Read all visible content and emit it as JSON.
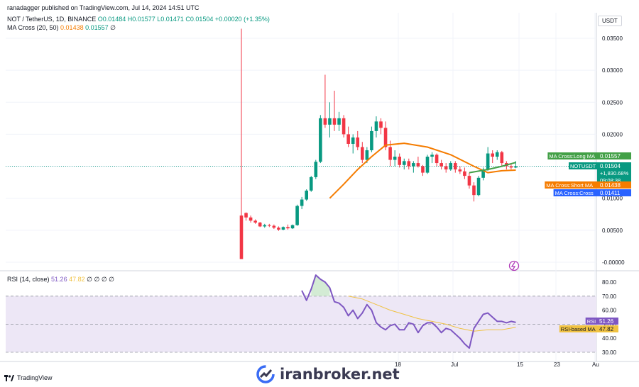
{
  "header": {
    "published": "ranadagger published on TradingView.com, Jul 14, 2024 14:51 UTC",
    "symbol": "NOT / TetherUS, 1D, BINANCE",
    "ohlc": "O0.01484 H0.01577 L0.01471 C0.01504 +0.00020 (+1.35%)",
    "ma_label": "MA Cross (20, 50)",
    "ma_short_val": "0.01438",
    "ma_long_val": "0.01557",
    "ma_tail": "∅",
    "rsi_label": "RSI (14, close)",
    "rsi_val": "51.26",
    "rsi_based_val": "47.82",
    "rsi_tail": "∅ ∅ ∅ ∅"
  },
  "currency": "USDT",
  "branding": {
    "tradingview": "TradingView",
    "watermark": "iranbroker.net"
  },
  "colors": {
    "up": "#089981",
    "down": "#f23645",
    "ma_short": "#f57c00",
    "ma_long": "#43a047",
    "rsi": "#7e57c2",
    "rsi_ma": "#f0c242",
    "rsi_band": "#ede7f6",
    "grid": "#f0f3fa"
  },
  "chart_data": [
    {
      "type": "candlestick",
      "title": "NOT / TetherUS, 1D, BINANCE",
      "ylim": [
        -0.0005,
        0.0375
      ],
      "y_ticks": [
        "0.03500",
        "0.03000",
        "0.02500",
        "0.02000",
        "0.01500",
        "0.01000",
        "0.00500",
        "-0.00000"
      ],
      "x_ticks": [
        "18",
        "Jul",
        "15",
        "23",
        "Au"
      ],
      "candles": [
        [
          0.0073,
          0.0365,
          0.0005,
          0.0005
        ],
        [
          0.0077,
          0.0078,
          0.0065,
          0.007
        ],
        [
          0.007,
          0.0073,
          0.0062,
          0.0065
        ],
        [
          0.0065,
          0.0067,
          0.006,
          0.0062
        ],
        [
          0.0062,
          0.0063,
          0.0055,
          0.0056
        ],
        [
          0.0056,
          0.006,
          0.0054,
          0.0058
        ],
        [
          0.0058,
          0.006,
          0.0055,
          0.0057
        ],
        [
          0.0057,
          0.0059,
          0.0052,
          0.0054
        ],
        [
          0.0054,
          0.0056,
          0.0049,
          0.0051
        ],
        [
          0.0051,
          0.0056,
          0.005,
          0.0055
        ],
        [
          0.0055,
          0.0059,
          0.0051,
          0.0053
        ],
        [
          0.0053,
          0.0059,
          0.0052,
          0.0058
        ],
        [
          0.0058,
          0.009,
          0.0057,
          0.0088
        ],
        [
          0.0088,
          0.0102,
          0.0083,
          0.0098
        ],
        [
          0.0098,
          0.0114,
          0.0096,
          0.0112
        ],
        [
          0.0112,
          0.0135,
          0.011,
          0.0133
        ],
        [
          0.0133,
          0.016,
          0.013,
          0.0157
        ],
        [
          0.0157,
          0.023,
          0.0155,
          0.0225
        ],
        [
          0.0225,
          0.0293,
          0.021,
          0.0215
        ],
        [
          0.0215,
          0.025,
          0.0195,
          0.0225
        ],
        [
          0.0225,
          0.0268,
          0.0205,
          0.0215
        ],
        [
          0.0215,
          0.0235,
          0.0205,
          0.0225
        ],
        [
          0.0225,
          0.023,
          0.0195,
          0.02
        ],
        [
          0.02,
          0.0212,
          0.018,
          0.0185
        ],
        [
          0.0185,
          0.02,
          0.017,
          0.0195
        ],
        [
          0.0195,
          0.0205,
          0.0175,
          0.018
        ],
        [
          0.018,
          0.0188,
          0.0155,
          0.016
        ],
        [
          0.016,
          0.018,
          0.0155,
          0.0175
        ],
        [
          0.0175,
          0.0212,
          0.0172,
          0.0205
        ],
        [
          0.0205,
          0.0228,
          0.0195,
          0.022
        ],
        [
          0.022,
          0.0225,
          0.02,
          0.021
        ],
        [
          0.021,
          0.022,
          0.0175,
          0.018
        ],
        [
          0.018,
          0.019,
          0.015,
          0.016
        ],
        [
          0.016,
          0.0175,
          0.015,
          0.0165
        ],
        [
          0.0165,
          0.017,
          0.0148,
          0.0152
        ],
        [
          0.0152,
          0.0162,
          0.0145,
          0.0158
        ],
        [
          0.0158,
          0.0162,
          0.0145,
          0.015
        ],
        [
          0.015,
          0.0158,
          0.014,
          0.0155
        ],
        [
          0.0155,
          0.0165,
          0.0148,
          0.015
        ],
        [
          0.015,
          0.0152,
          0.0135,
          0.014
        ],
        [
          0.014,
          0.0168,
          0.0138,
          0.0165
        ],
        [
          0.0165,
          0.0172,
          0.0155,
          0.0168
        ],
        [
          0.0168,
          0.017,
          0.015,
          0.0155
        ],
        [
          0.0155,
          0.016,
          0.0145,
          0.015
        ],
        [
          0.015,
          0.0155,
          0.014,
          0.0145
        ],
        [
          0.0145,
          0.0158,
          0.0143,
          0.0155
        ],
        [
          0.0155,
          0.0158,
          0.014,
          0.0145
        ],
        [
          0.0145,
          0.015,
          0.0138,
          0.0142
        ],
        [
          0.0142,
          0.0148,
          0.013,
          0.0135
        ],
        [
          0.0135,
          0.014,
          0.0115,
          0.012
        ],
        [
          0.012,
          0.0125,
          0.0095,
          0.0105
        ],
        [
          0.0105,
          0.0135,
          0.0103,
          0.0132
        ],
        [
          0.0132,
          0.0148,
          0.0128,
          0.0145
        ],
        [
          0.0145,
          0.018,
          0.0143,
          0.017
        ],
        [
          0.017,
          0.0175,
          0.0155,
          0.0165
        ],
        [
          0.0165,
          0.0175,
          0.016,
          0.0172
        ],
        [
          0.0172,
          0.0174,
          0.015,
          0.0155
        ],
        [
          0.0155,
          0.0158,
          0.0145,
          0.015
        ],
        [
          0.015,
          0.0155,
          0.0145,
          0.0148
        ],
        [
          0.0148,
          0.0158,
          0.0147,
          0.015
        ]
      ],
      "ma_short_series": {
        "name": "MA Cross:Short MA",
        "x": [
          19,
          22,
          25,
          28,
          31,
          35,
          40,
          45,
          50,
          53,
          56,
          59
        ],
        "y": [
          0.01,
          0.0122,
          0.0145,
          0.0165,
          0.0183,
          0.0186,
          0.018,
          0.0168,
          0.015,
          0.014,
          0.0143,
          0.0144
        ]
      },
      "ma_long_series": {
        "name": "MA Cross:Long MA",
        "x": [
          49,
          53,
          56,
          59
        ],
        "y": [
          0.014,
          0.0145,
          0.015,
          0.0156
        ]
      },
      "price_labels": [
        {
          "name": "MA Cross:Long MA",
          "value": "0.01557",
          "color": "#43a047"
        },
        {
          "name": "NOTUSDT",
          "value": "0.01504",
          "extra": [
            "+1,830.68%",
            "09:08:38"
          ],
          "color": "#089981"
        },
        {
          "name": "MA Cross:Short MA",
          "value": "0.01438",
          "color": "#f57c00"
        },
        {
          "name": "MA Cross:Cross",
          "value": "0.01411",
          "color": "#2962ff"
        }
      ]
    },
    {
      "type": "line",
      "title": "RSI (14, close)",
      "ylim": [
        25,
        90
      ],
      "y_ticks": [
        "80.00",
        "70.00",
        "60.00",
        "50.00",
        "40.00",
        "30.00"
      ],
      "band": [
        30,
        70
      ],
      "series": [
        {
          "name": "RSI",
          "x": [
            13,
            14,
            15,
            16,
            17,
            18,
            19,
            20,
            21,
            22,
            23,
            24,
            25,
            26,
            27,
            28,
            29,
            30,
            31,
            32,
            33,
            34,
            35,
            36,
            37,
            38,
            39,
            40,
            41,
            42,
            43,
            44,
            45,
            46,
            47,
            48,
            49,
            50,
            51,
            52,
            53,
            54,
            55,
            56,
            57,
            58,
            59
          ],
          "values": [
            74,
            67,
            75,
            85,
            82,
            80,
            76,
            66,
            65,
            62,
            56,
            60,
            54,
            58,
            64,
            60,
            51,
            48,
            46,
            49,
            50,
            46,
            46,
            51,
            50,
            44,
            49,
            51,
            51,
            48,
            44,
            47,
            46,
            43,
            40,
            36,
            33,
            47,
            52,
            57,
            58,
            55,
            52,
            52,
            51,
            52,
            51.26
          ]
        },
        {
          "name": "RSI-based MA",
          "x": [
            23,
            26,
            29,
            32,
            35,
            38,
            41,
            44,
            47,
            50,
            53,
            56,
            59
          ],
          "values": [
            70,
            68,
            64,
            60,
            57,
            54,
            52,
            50,
            47,
            45,
            46,
            46,
            47.82
          ]
        }
      ],
      "price_labels": [
        {
          "name": "RSI",
          "value": "51.26",
          "color": "#7e57c2"
        },
        {
          "name": "RSI-based MA",
          "value": "47.82",
          "color": "#f0c242"
        }
      ]
    }
  ]
}
